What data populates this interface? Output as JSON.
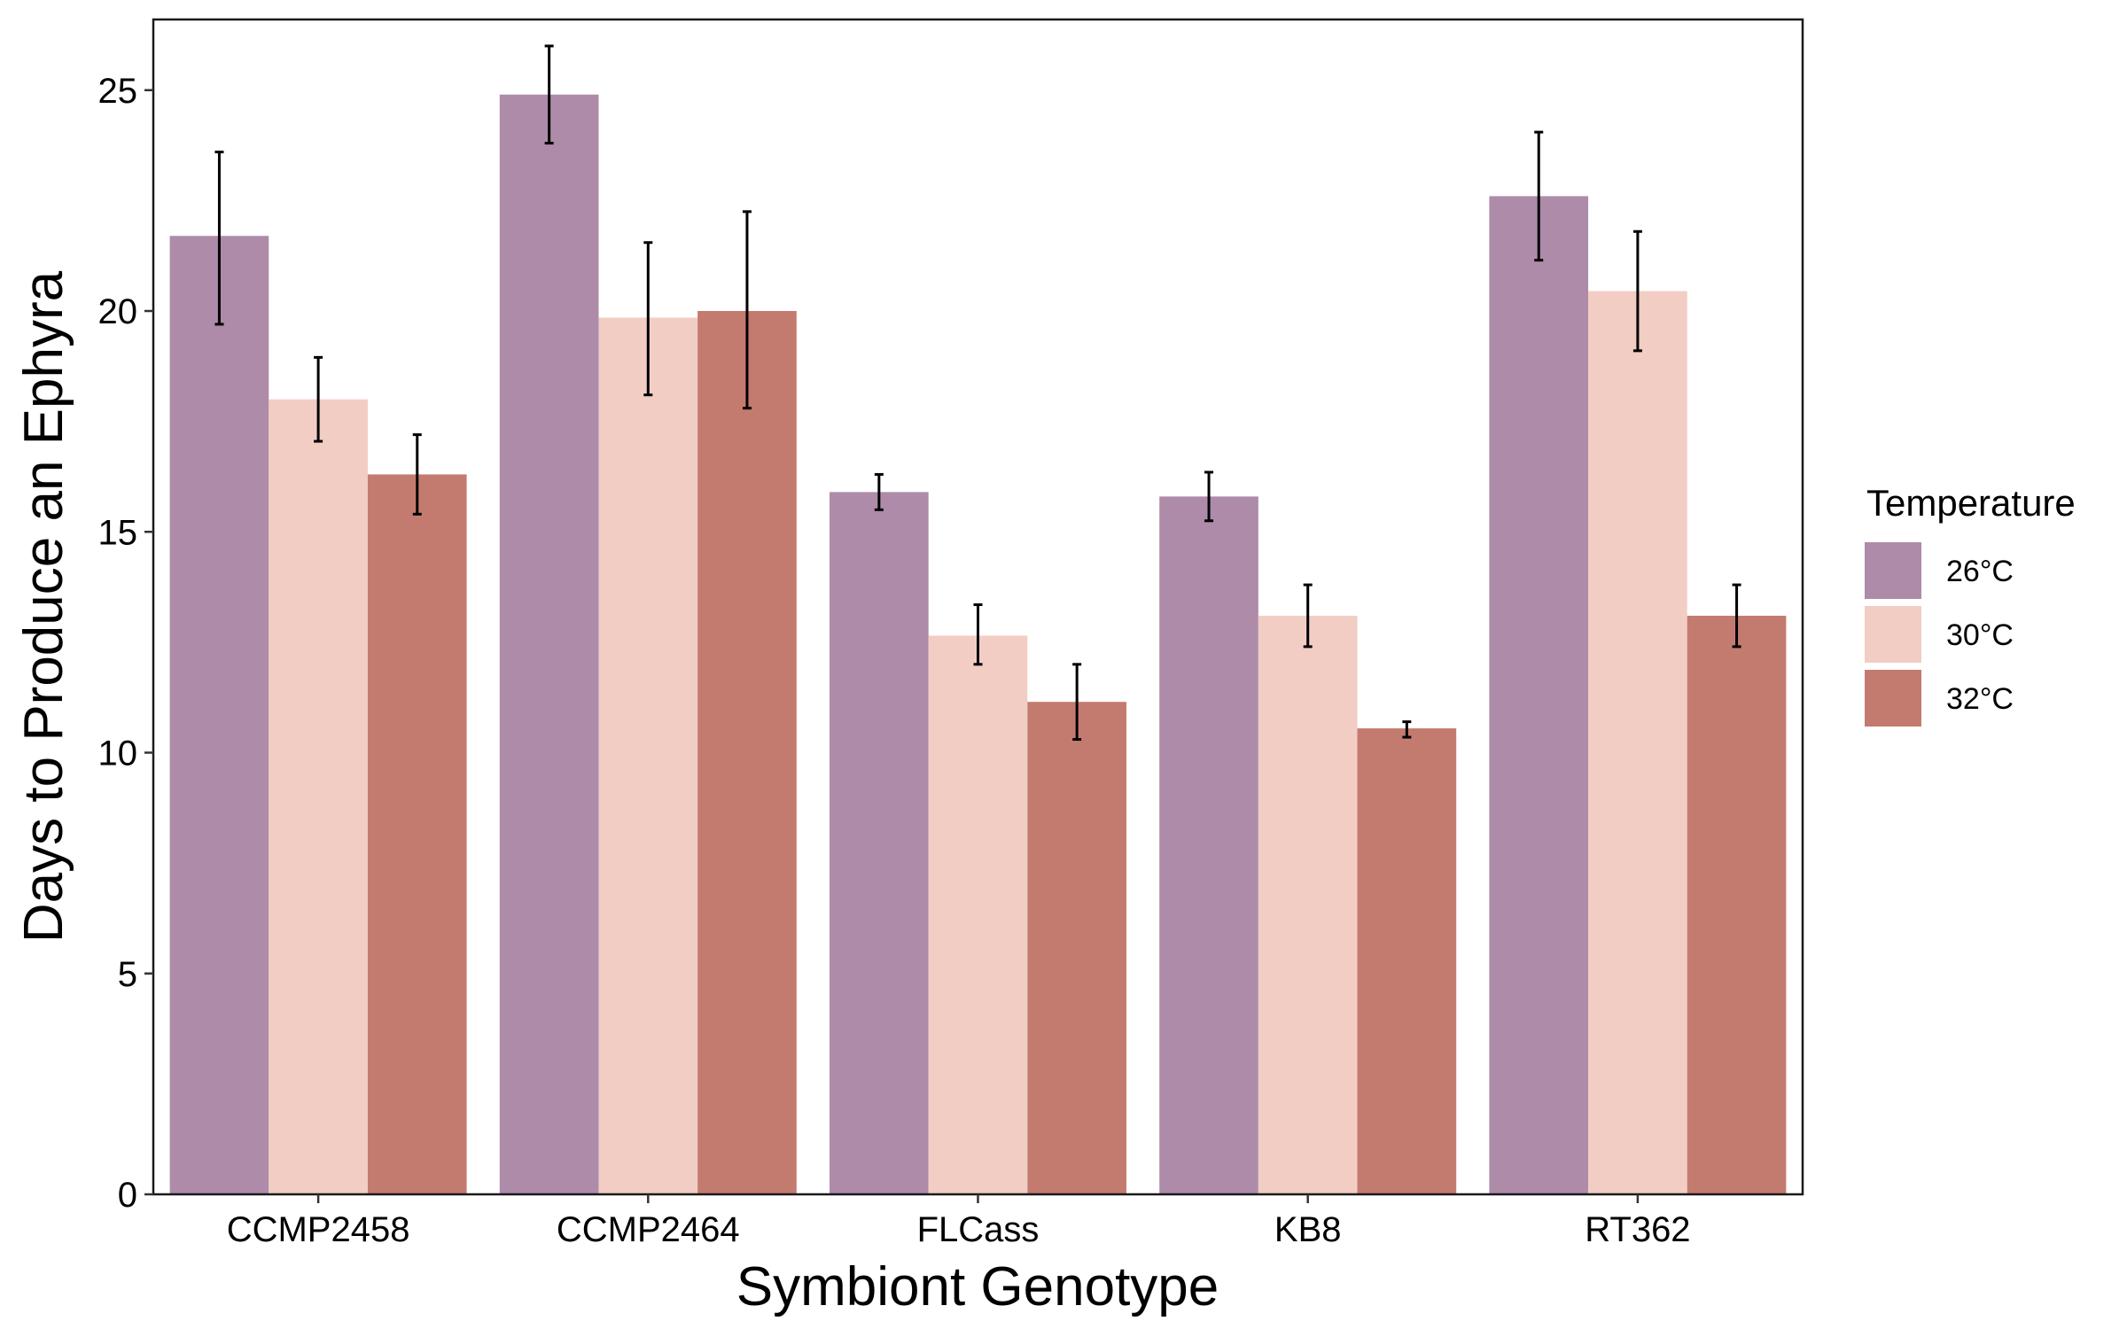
{
  "chart_data": {
    "type": "bar",
    "xlabel": "Symbiont Genotype",
    "ylabel": "Days to Produce an Ephyra",
    "categories": [
      "CCMP2458",
      "CCMP2464",
      "FLCass",
      "KB8",
      "RT362"
    ],
    "ylim": [
      0,
      26.6
    ],
    "yticks": [
      0,
      5,
      10,
      15,
      20,
      25
    ],
    "grid": false,
    "legend": {
      "title": "Temperature",
      "position": "right"
    },
    "series": [
      {
        "name": "26°C",
        "color": "#ad8ba9",
        "values": [
          21.7,
          24.9,
          15.9,
          15.8,
          22.6
        ],
        "err_low": [
          19.7,
          23.8,
          15.5,
          15.25,
          21.15
        ],
        "err_high": [
          23.6,
          26.0,
          16.3,
          16.35,
          24.05
        ]
      },
      {
        "name": "30°C",
        "color": "#f2cdc4",
        "values": [
          18.0,
          19.85,
          12.65,
          13.1,
          20.45
        ],
        "err_low": [
          17.05,
          18.1,
          12.0,
          12.4,
          19.1
        ],
        "err_high": [
          18.95,
          21.55,
          13.35,
          13.8,
          21.8
        ]
      },
      {
        "name": "32°C",
        "color": "#c47b6f",
        "values": [
          16.3,
          20.0,
          11.15,
          10.55,
          13.1
        ],
        "err_low": [
          15.4,
          17.8,
          10.3,
          10.35,
          12.4
        ],
        "err_high": [
          17.2,
          22.25,
          12.0,
          10.7,
          13.8
        ]
      }
    ]
  }
}
